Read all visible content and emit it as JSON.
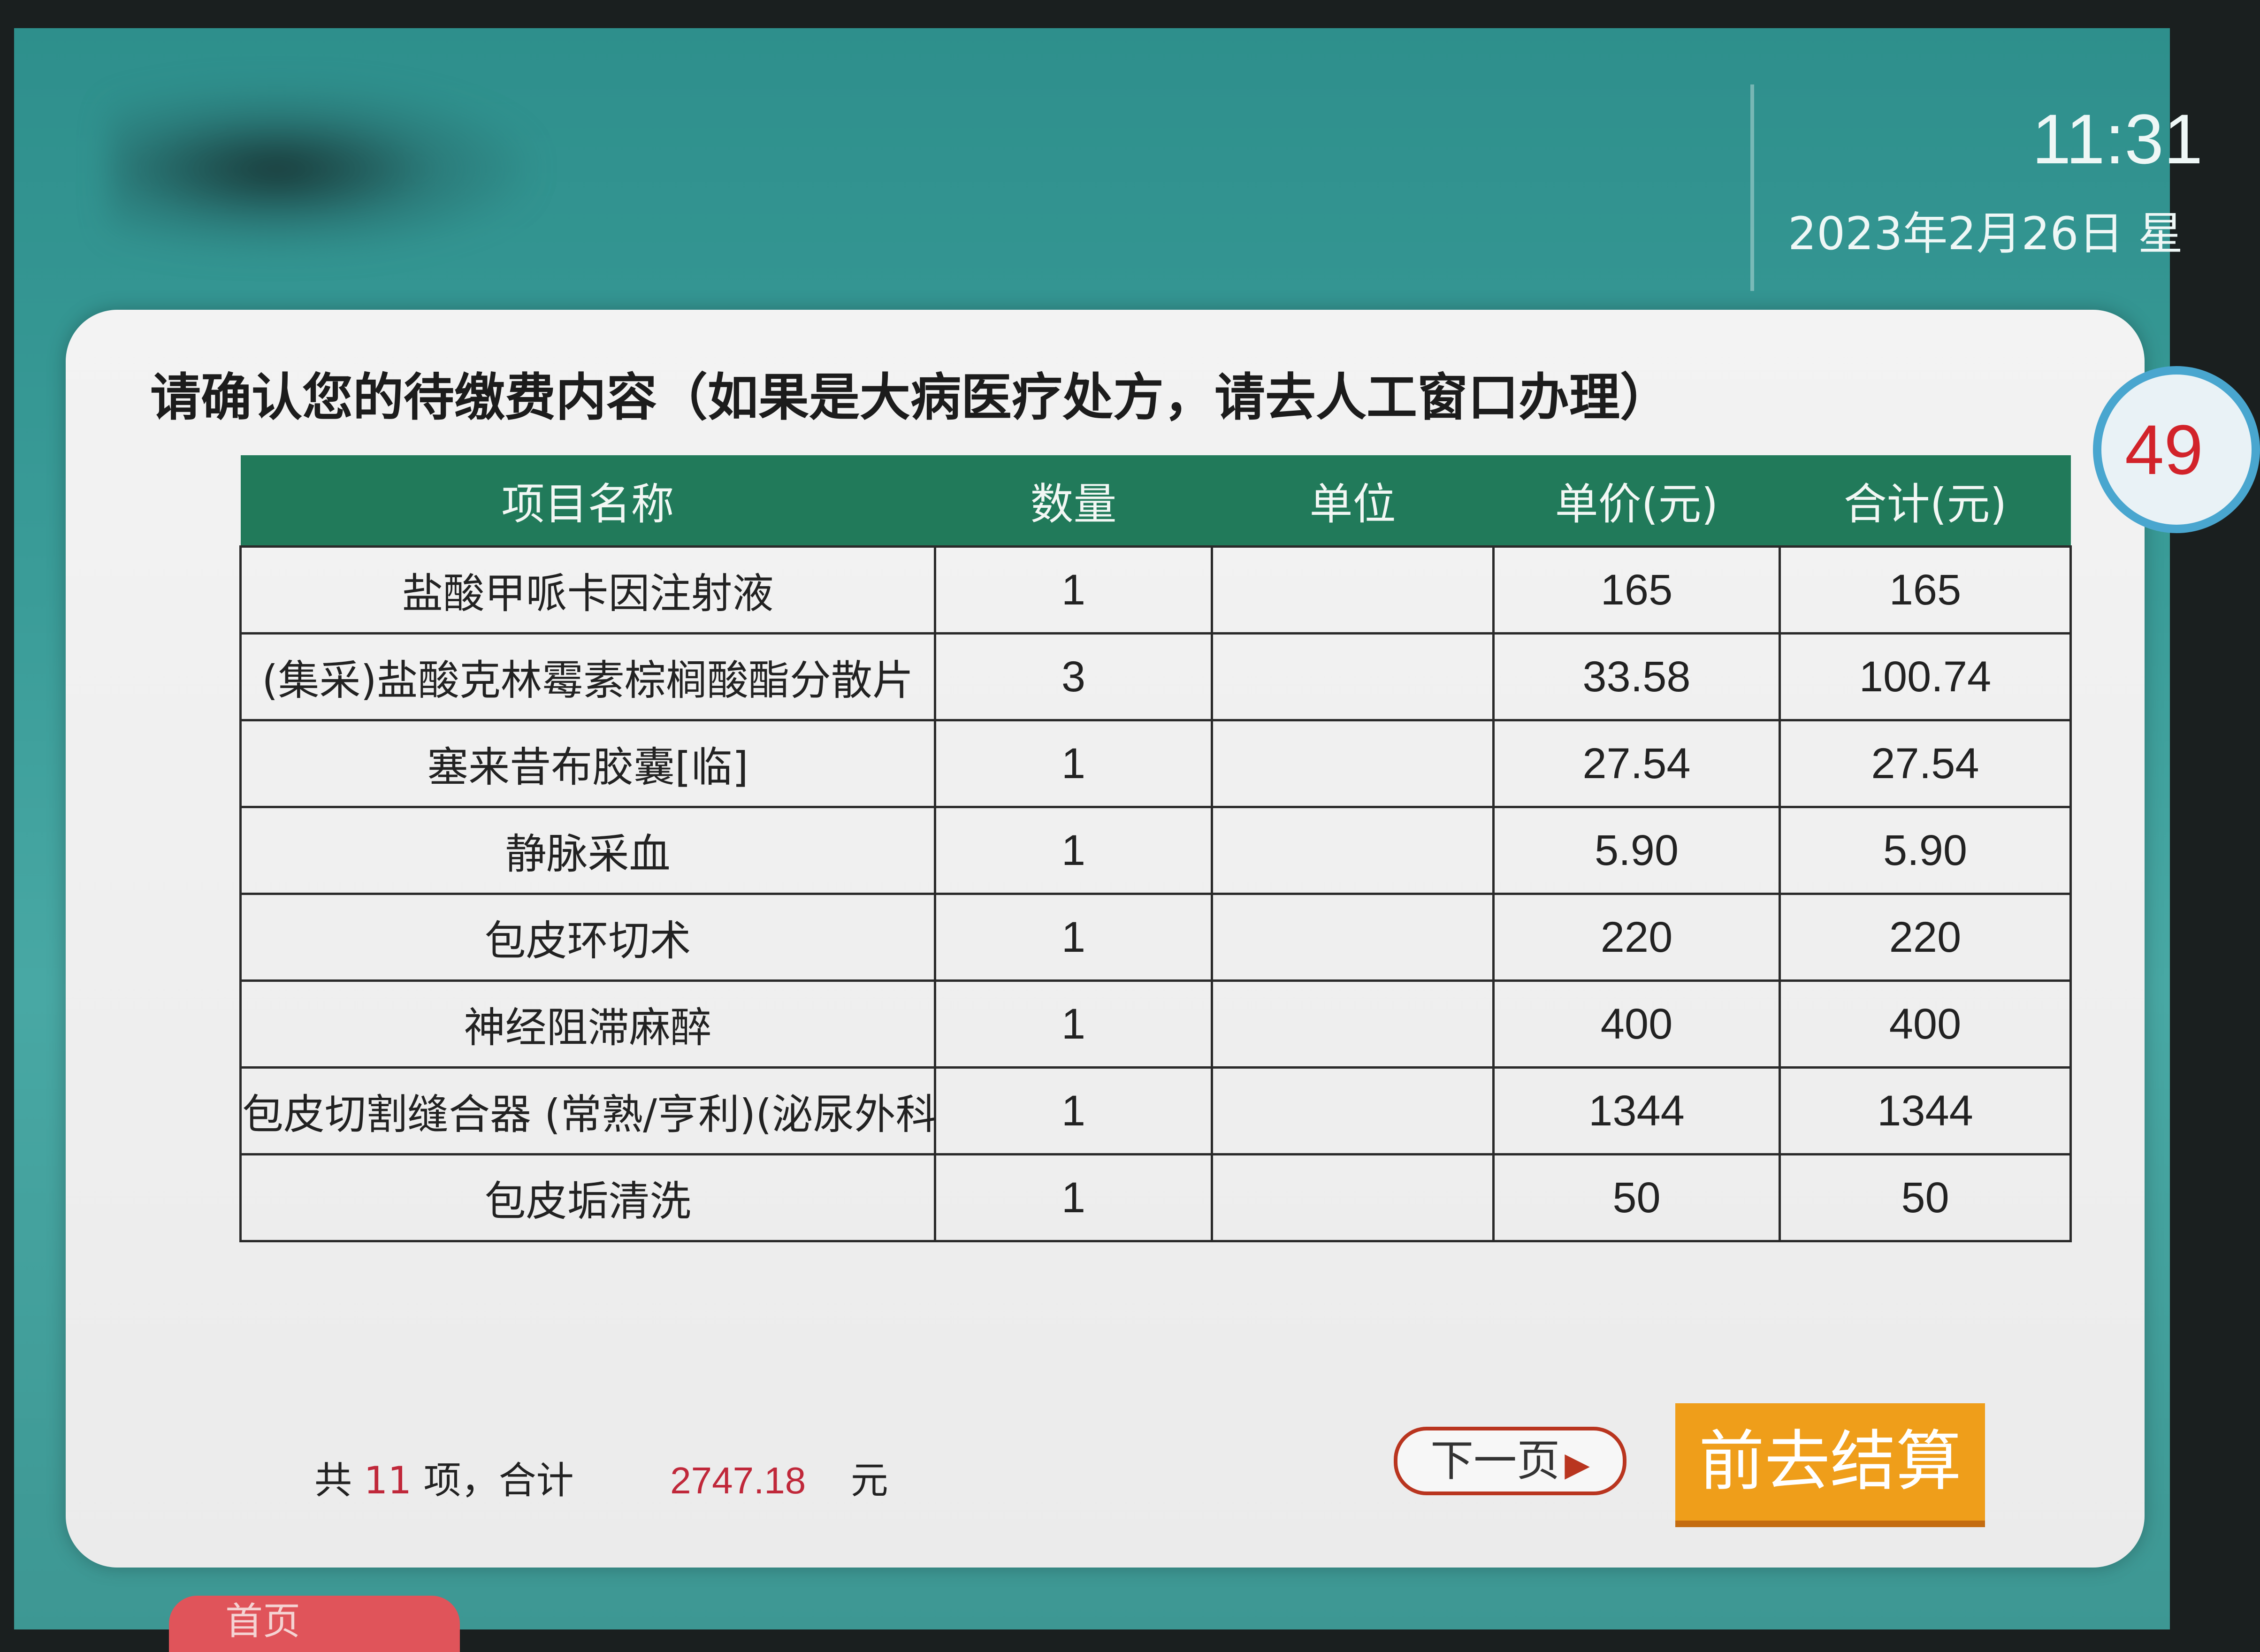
{
  "header": {
    "time": "11:31",
    "date": "2023年2月26日 星"
  },
  "panel": {
    "title": "请确认您的待缴费内容（如果是大病医疗处方，请去人工窗口办理）",
    "countdown": "49"
  },
  "table": {
    "columns": [
      "项目名称",
      "数量",
      "单位",
      "单价(元)",
      "合计(元)"
    ],
    "rows": [
      {
        "name": "盐酸甲哌卡因注射液",
        "qty": "1",
        "unit": "",
        "price": "165",
        "total": "165"
      },
      {
        "name": "(集采)盐酸克林霉素棕榈酸酯分散片",
        "qty": "3",
        "unit": "",
        "price": "33.58",
        "total": "100.74"
      },
      {
        "name": "塞来昔布胶囊[临]",
        "qty": "1",
        "unit": "",
        "price": "27.54",
        "total": "27.54"
      },
      {
        "name": "静脉采血",
        "qty": "1",
        "unit": "",
        "price": "5.90",
        "total": "5.90"
      },
      {
        "name": "包皮环切术",
        "qty": "1",
        "unit": "",
        "price": "220",
        "total": "220"
      },
      {
        "name": "神经阻滞麻醉",
        "qty": "1",
        "unit": "",
        "price": "400",
        "total": "400"
      },
      {
        "name": "包皮切割缝合器 (常熟/亨利)(泌尿外科",
        "qty": "1",
        "unit": "",
        "price": "1344",
        "total": "1344"
      },
      {
        "name": "包皮垢清洗",
        "qty": "1",
        "unit": "",
        "price": "50",
        "total": "50"
      }
    ]
  },
  "summary": {
    "prefix": "共",
    "count": "11",
    "middle": "项，合计",
    "amount": "2747.18",
    "currency": "元"
  },
  "buttons": {
    "next_page": "下一页",
    "checkout": "前去结算",
    "home": "首页"
  },
  "colors": {
    "header_bg": "#2e8f8c",
    "table_header": "#217a5a",
    "checkout": "#ef9e1a",
    "accent_red": "#c0283a"
  },
  "icons": {
    "next": "play-arrow-icon",
    "home": "home-icon"
  }
}
